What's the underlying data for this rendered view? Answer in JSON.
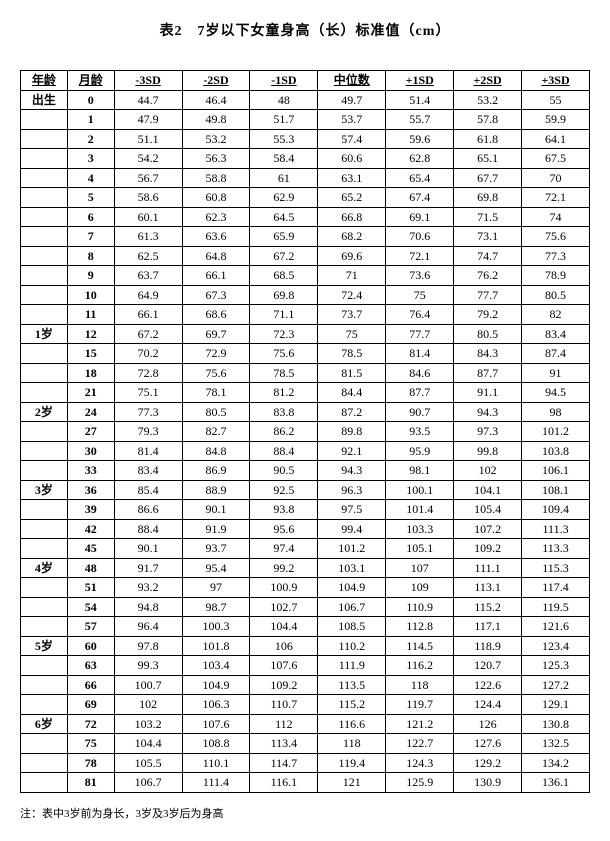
{
  "title": "表2　7岁以下女童身高（长）标准值（cm）",
  "note": "注：表中3岁前为身长，3岁及3岁后为身高",
  "headers": [
    "年龄",
    "月龄",
    "-3SD",
    "-2SD",
    "-1SD",
    "中位数",
    "+1SD",
    "+2SD",
    "+3SD"
  ],
  "rows": [
    {
      "age": "出生",
      "month": "0",
      "v": [
        "44.7",
        "46.4",
        "48",
        "49.7",
        "51.4",
        "53.2",
        "55"
      ]
    },
    {
      "age": "",
      "month": "1",
      "v": [
        "47.9",
        "49.8",
        "51.7",
        "53.7",
        "55.7",
        "57.8",
        "59.9"
      ]
    },
    {
      "age": "",
      "month": "2",
      "v": [
        "51.1",
        "53.2",
        "55.3",
        "57.4",
        "59.6",
        "61.8",
        "64.1"
      ]
    },
    {
      "age": "",
      "month": "3",
      "v": [
        "54.2",
        "56.3",
        "58.4",
        "60.6",
        "62.8",
        "65.1",
        "67.5"
      ]
    },
    {
      "age": "",
      "month": "4",
      "v": [
        "56.7",
        "58.8",
        "61",
        "63.1",
        "65.4",
        "67.7",
        "70"
      ]
    },
    {
      "age": "",
      "month": "5",
      "v": [
        "58.6",
        "60.8",
        "62.9",
        "65.2",
        "67.4",
        "69.8",
        "72.1"
      ]
    },
    {
      "age": "",
      "month": "6",
      "v": [
        "60.1",
        "62.3",
        "64.5",
        "66.8",
        "69.1",
        "71.5",
        "74"
      ]
    },
    {
      "age": "",
      "month": "7",
      "v": [
        "61.3",
        "63.6",
        "65.9",
        "68.2",
        "70.6",
        "73.1",
        "75.6"
      ]
    },
    {
      "age": "",
      "month": "8",
      "v": [
        "62.5",
        "64.8",
        "67.2",
        "69.6",
        "72.1",
        "74.7",
        "77.3"
      ]
    },
    {
      "age": "",
      "month": "9",
      "v": [
        "63.7",
        "66.1",
        "68.5",
        "71",
        "73.6",
        "76.2",
        "78.9"
      ]
    },
    {
      "age": "",
      "month": "10",
      "v": [
        "64.9",
        "67.3",
        "69.8",
        "72.4",
        "75",
        "77.7",
        "80.5"
      ]
    },
    {
      "age": "",
      "month": "11",
      "v": [
        "66.1",
        "68.6",
        "71.1",
        "73.7",
        "76.4",
        "79.2",
        "82"
      ]
    },
    {
      "age": "1岁",
      "month": "12",
      "v": [
        "67.2",
        "69.7",
        "72.3",
        "75",
        "77.7",
        "80.5",
        "83.4"
      ]
    },
    {
      "age": "",
      "month": "15",
      "v": [
        "70.2",
        "72.9",
        "75.6",
        "78.5",
        "81.4",
        "84.3",
        "87.4"
      ]
    },
    {
      "age": "",
      "month": "18",
      "v": [
        "72.8",
        "75.6",
        "78.5",
        "81.5",
        "84.6",
        "87.7",
        "91"
      ]
    },
    {
      "age": "",
      "month": "21",
      "v": [
        "75.1",
        "78.1",
        "81.2",
        "84.4",
        "87.7",
        "91.1",
        "94.5"
      ]
    },
    {
      "age": "2岁",
      "month": "24",
      "v": [
        "77.3",
        "80.5",
        "83.8",
        "87.2",
        "90.7",
        "94.3",
        "98"
      ]
    },
    {
      "age": "",
      "month": "27",
      "v": [
        "79.3",
        "82.7",
        "86.2",
        "89.8",
        "93.5",
        "97.3",
        "101.2"
      ]
    },
    {
      "age": "",
      "month": "30",
      "v": [
        "81.4",
        "84.8",
        "88.4",
        "92.1",
        "95.9",
        "99.8",
        "103.8"
      ]
    },
    {
      "age": "",
      "month": "33",
      "v": [
        "83.4",
        "86.9",
        "90.5",
        "94.3",
        "98.1",
        "102",
        "106.1"
      ]
    },
    {
      "age": "3岁",
      "month": "36",
      "v": [
        "85.4",
        "88.9",
        "92.5",
        "96.3",
        "100.1",
        "104.1",
        "108.1"
      ]
    },
    {
      "age": "",
      "month": "39",
      "v": [
        "86.6",
        "90.1",
        "93.8",
        "97.5",
        "101.4",
        "105.4",
        "109.4"
      ]
    },
    {
      "age": "",
      "month": "42",
      "v": [
        "88.4",
        "91.9",
        "95.6",
        "99.4",
        "103.3",
        "107.2",
        "111.3"
      ]
    },
    {
      "age": "",
      "month": "45",
      "v": [
        "90.1",
        "93.7",
        "97.4",
        "101.2",
        "105.1",
        "109.2",
        "113.3"
      ]
    },
    {
      "age": "4岁",
      "month": "48",
      "v": [
        "91.7",
        "95.4",
        "99.2",
        "103.1",
        "107",
        "111.1",
        "115.3"
      ]
    },
    {
      "age": "",
      "month": "51",
      "v": [
        "93.2",
        "97",
        "100.9",
        "104.9",
        "109",
        "113.1",
        "117.4"
      ]
    },
    {
      "age": "",
      "month": "54",
      "v": [
        "94.8",
        "98.7",
        "102.7",
        "106.7",
        "110.9",
        "115.2",
        "119.5"
      ]
    },
    {
      "age": "",
      "month": "57",
      "v": [
        "96.4",
        "100.3",
        "104.4",
        "108.5",
        "112.8",
        "117.1",
        "121.6"
      ]
    },
    {
      "age": "5岁",
      "month": "60",
      "v": [
        "97.8",
        "101.8",
        "106",
        "110.2",
        "114.5",
        "118.9",
        "123.4"
      ]
    },
    {
      "age": "",
      "month": "63",
      "v": [
        "99.3",
        "103.4",
        "107.6",
        "111.9",
        "116.2",
        "120.7",
        "125.3"
      ]
    },
    {
      "age": "",
      "month": "66",
      "v": [
        "100.7",
        "104.9",
        "109.2",
        "113.5",
        "118",
        "122.6",
        "127.2"
      ]
    },
    {
      "age": "",
      "month": "69",
      "v": [
        "102",
        "106.3",
        "110.7",
        "115.2",
        "119.7",
        "124.4",
        "129.1"
      ]
    },
    {
      "age": "6岁",
      "month": "72",
      "v": [
        "103.2",
        "107.6",
        "112",
        "116.6",
        "121.2",
        "126",
        "130.8"
      ]
    },
    {
      "age": "",
      "month": "75",
      "v": [
        "104.4",
        "108.8",
        "113.4",
        "118",
        "122.7",
        "127.6",
        "132.5"
      ]
    },
    {
      "age": "",
      "month": "78",
      "v": [
        "105.5",
        "110.1",
        "114.7",
        "119.4",
        "124.3",
        "129.2",
        "134.2"
      ]
    },
    {
      "age": "",
      "month": "81",
      "v": [
        "106.7",
        "111.4",
        "116.1",
        "121",
        "125.9",
        "130.9",
        "136.1"
      ]
    }
  ],
  "style": {
    "background_color": "#ffffff",
    "border_color": "#000000",
    "title_fontsize": 14,
    "cell_fontsize": 12,
    "note_fontsize": 11,
    "font_family": "SimSun"
  }
}
